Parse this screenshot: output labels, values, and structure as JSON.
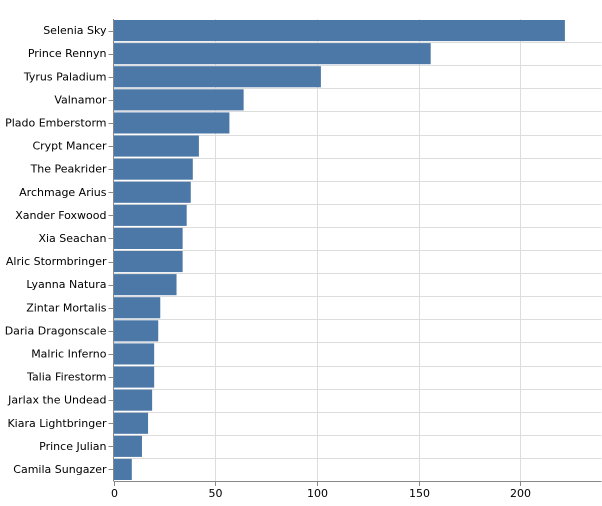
{
  "chart_data": {
    "type": "bar",
    "orientation": "horizontal",
    "title": "",
    "xlabel": "",
    "ylabel": "",
    "xlim": [
      0,
      240
    ],
    "x_ticks": [
      0,
      50,
      100,
      150,
      200
    ],
    "grid": true,
    "legend": "none",
    "bar_color": "#4c78a8",
    "grid_color": "#dddddd",
    "axis_color": "#888888",
    "categories": [
      "Selenia Sky",
      "Prince Rennyn",
      "Tyrus Paladium",
      "Valnamor",
      "Plado Emberstorm",
      "Crypt Mancer",
      "The Peakrider",
      "Archmage Arius",
      "Xander Foxwood",
      "Xia Seachan",
      "Alric Stormbringer",
      "Lyanna Natura",
      "Zintar Mortalis",
      "Daria Dragonscale",
      "Malric Inferno",
      "Talia Firestorm",
      "Jarlax the Undead",
      "Kiara Lightbringer",
      "Prince Julian",
      "Camila Sungazer"
    ],
    "values": [
      222,
      156,
      102,
      64,
      57,
      42,
      39,
      38,
      36,
      34,
      34,
      31,
      23,
      22,
      20,
      20,
      19,
      17,
      14,
      9
    ]
  }
}
